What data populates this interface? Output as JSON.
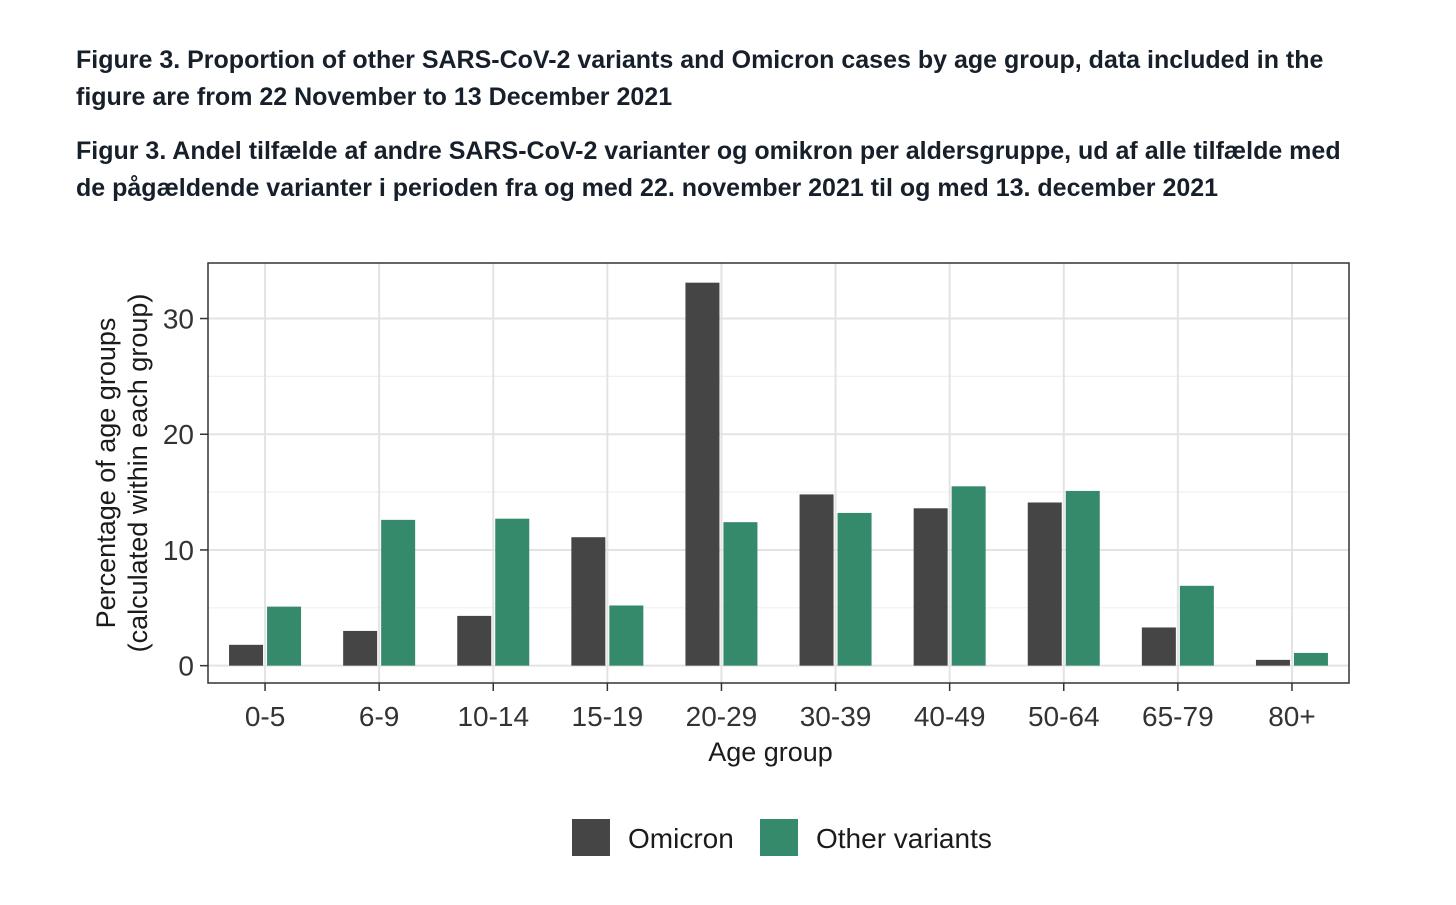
{
  "caption_en": "Figure 3. Proportion of other SARS-CoV-2 variants and Omicron cases by age group, data included in the figure are from 22 November to 13 December 2021",
  "caption_da": "Figur 3.  Andel tilfælde af andre SARS-CoV-2 varianter og omikron per aldersgruppe, ud af alle tilfælde med de pågældende varianter i perioden fra og med 22. november 2021 til og med 13. december 2021",
  "chart_data": {
    "type": "bar",
    "title": "",
    "xlabel": "Age group",
    "ylabel_line1": "Percentage of age groups",
    "ylabel_line2": "(calculated within each group)",
    "categories": [
      "0-5",
      "6-9",
      "10-14",
      "15-19",
      "20-29",
      "30-39",
      "40-49",
      "50-64",
      "65-79",
      "80+"
    ],
    "series": [
      {
        "name": "Omicron",
        "color": "#454545",
        "values": [
          1.8,
          3.0,
          4.3,
          11.1,
          33.1,
          14.8,
          13.6,
          14.1,
          3.3,
          0.5
        ]
      },
      {
        "name": "Other variants",
        "color": "#358a6c",
        "values": [
          5.1,
          12.6,
          12.7,
          5.2,
          12.4,
          13.2,
          15.5,
          15.1,
          6.9,
          1.1
        ]
      }
    ],
    "ylim": [
      -1.5,
      34.8
    ],
    "yticks": [
      0,
      10,
      20,
      30
    ],
    "ytick_labels": [
      "0",
      "10",
      "20",
      "30"
    ],
    "grid": true,
    "legend_position": "bottom"
  }
}
